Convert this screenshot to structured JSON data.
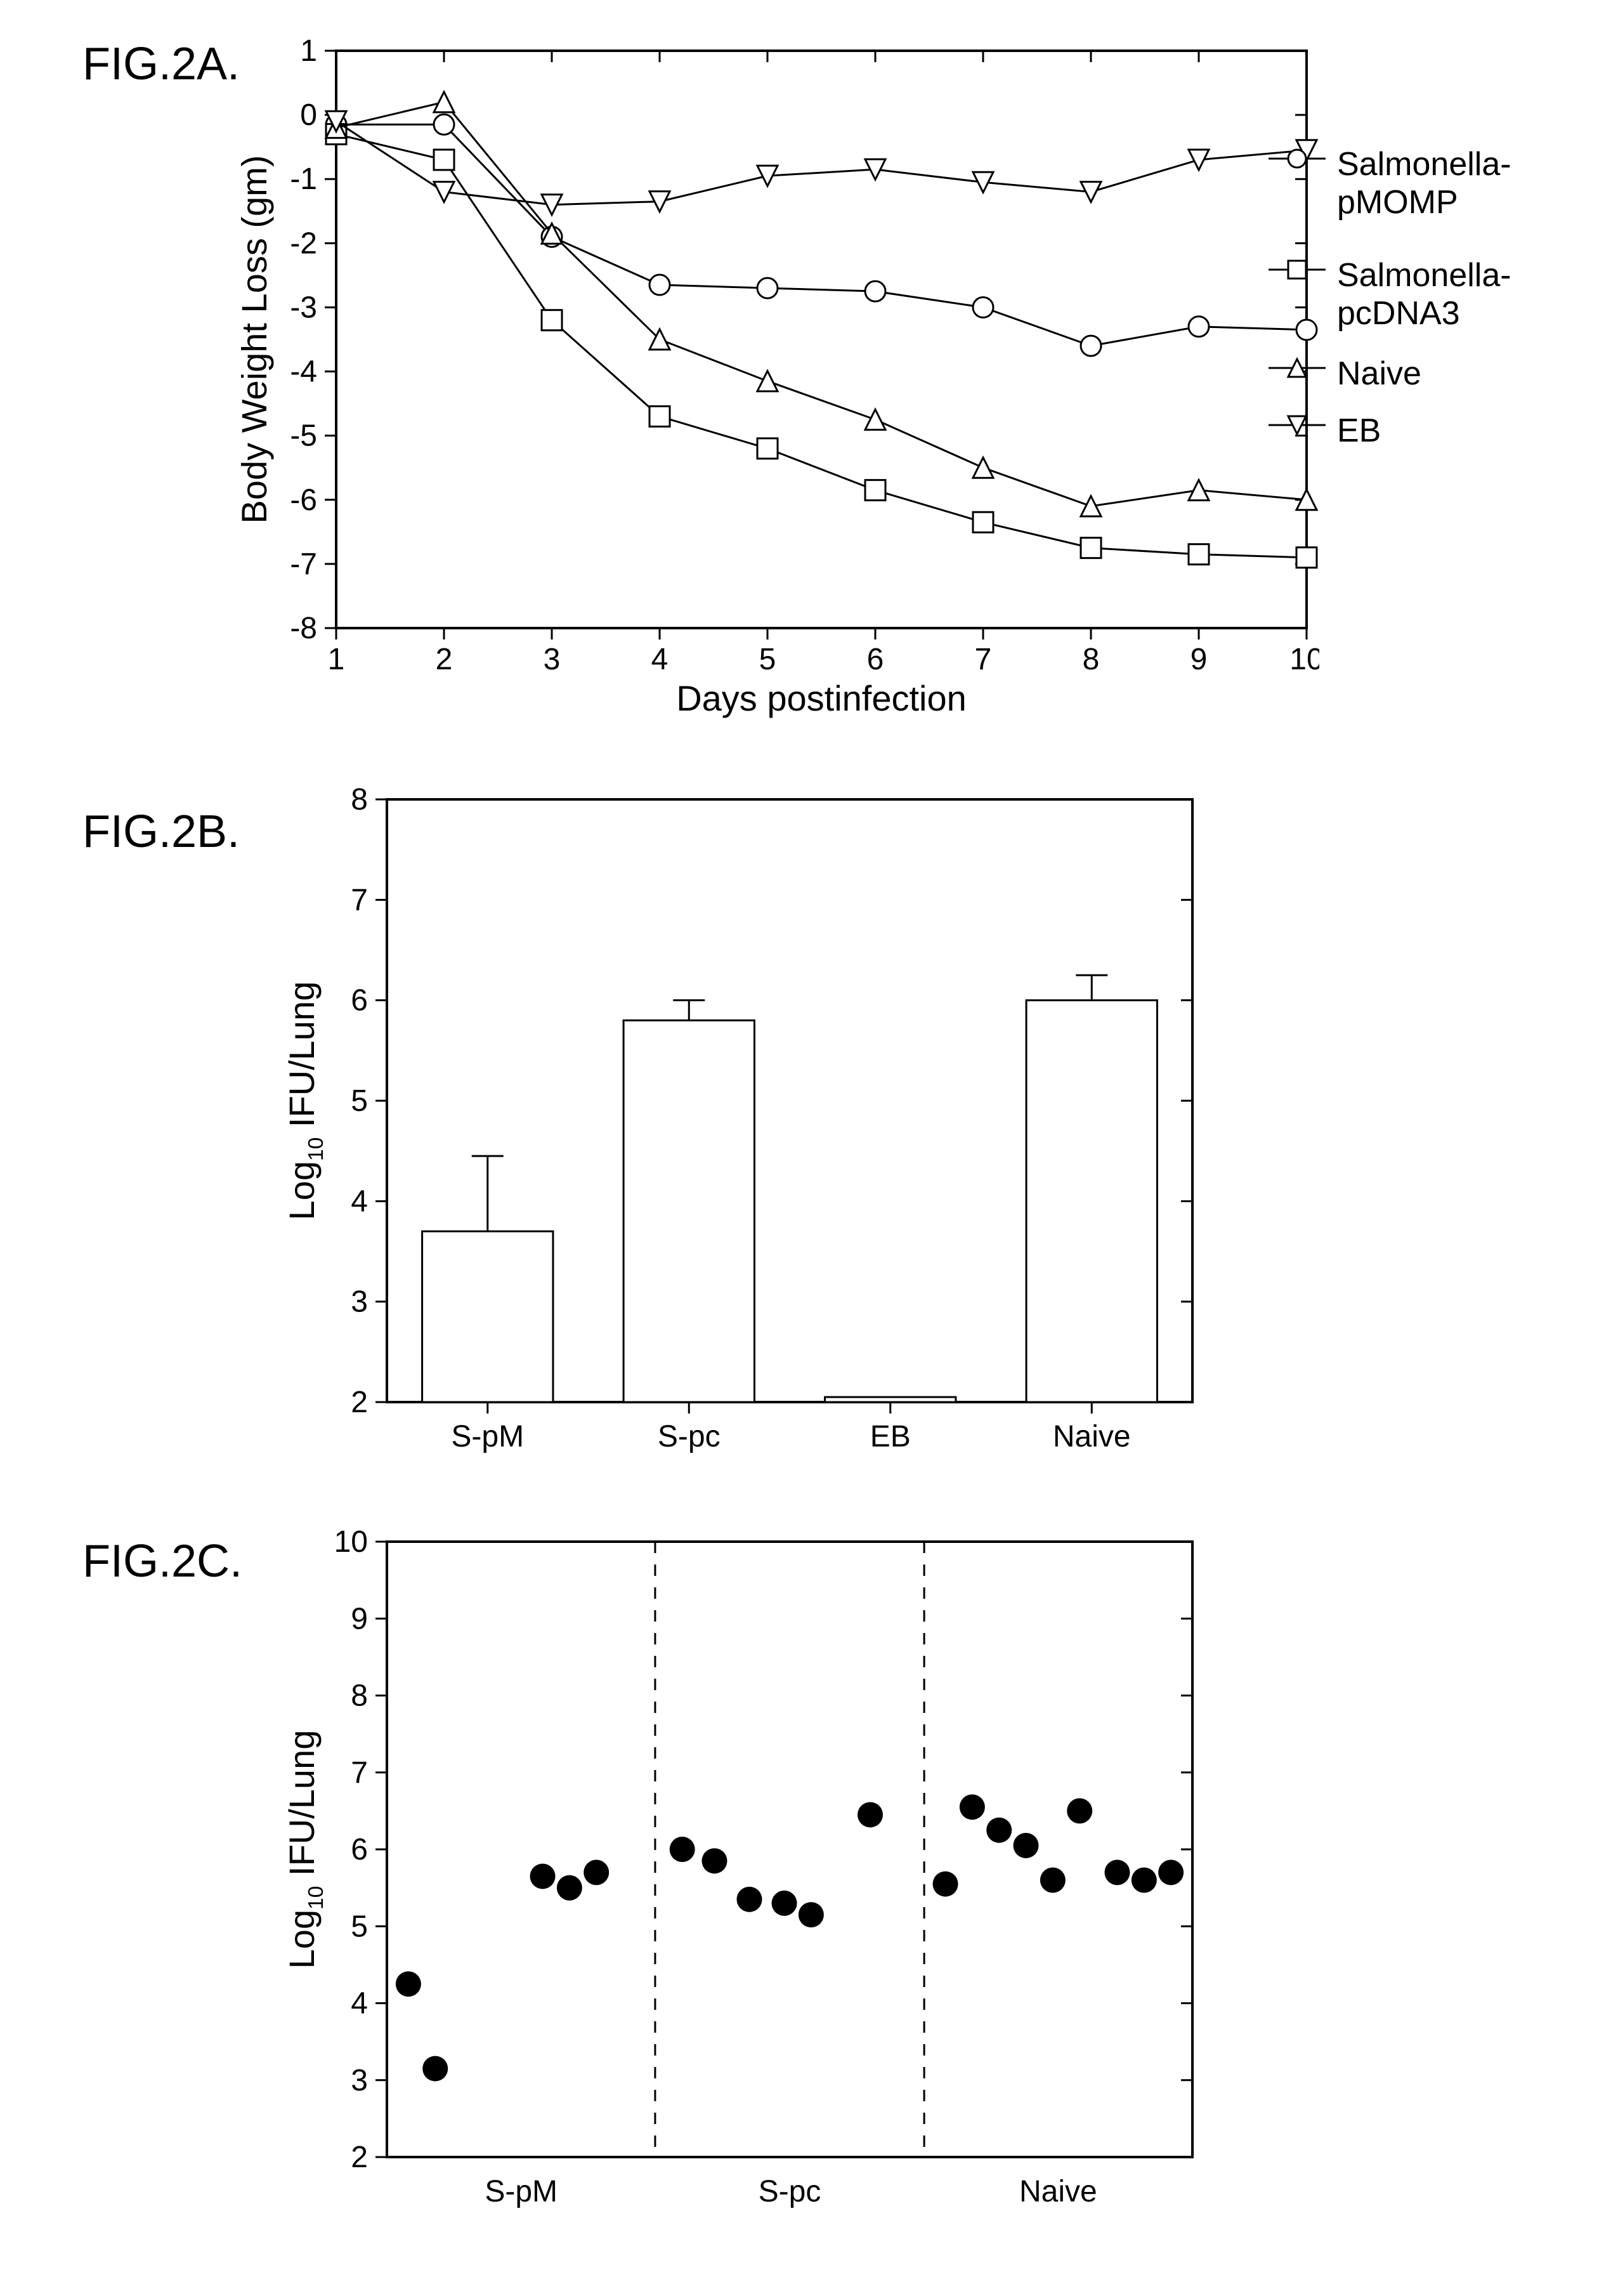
{
  "figA": {
    "label": "FIG.2A.",
    "type": "line",
    "xlabel": "Days postinfection",
    "ylabel": "Body Weight Loss (gm)",
    "xlim": [
      1,
      10
    ],
    "ylim": [
      -8,
      1
    ],
    "xtick_step": 1,
    "ytick_step": 1,
    "label_fontsize": 56,
    "tick_fontsize": 48,
    "line_color": "#000000",
    "line_width": 3,
    "background": "#ffffff",
    "marker_size": 16,
    "series": [
      {
        "name": "Salmonella-pMOMP",
        "marker": "circle",
        "x": [
          1,
          2,
          3,
          4,
          5,
          6,
          7,
          8,
          9,
          10
        ],
        "y": [
          -0.15,
          -0.15,
          -1.9,
          -2.65,
          -2.7,
          -2.75,
          -3.0,
          -3.6,
          -3.3,
          -3.35
        ]
      },
      {
        "name": "Salmonella-pcDNA3",
        "marker": "square",
        "x": [
          1,
          2,
          3,
          4,
          5,
          6,
          7,
          8,
          9,
          10
        ],
        "y": [
          -0.3,
          -0.7,
          -3.2,
          -4.7,
          -5.2,
          -5.85,
          -6.35,
          -6.75,
          -6.85,
          -6.9
        ]
      },
      {
        "name": "Naive",
        "marker": "triangle",
        "x": [
          1,
          2,
          3,
          4,
          5,
          6,
          7,
          8,
          9,
          10
        ],
        "y": [
          -0.2,
          0.2,
          -1.85,
          -3.5,
          -4.15,
          -4.75,
          -5.5,
          -6.1,
          -5.85,
          -6.0
        ]
      },
      {
        "name": "EB",
        "marker": "triangle-down",
        "x": [
          1,
          2,
          3,
          4,
          5,
          6,
          7,
          8,
          9,
          10
        ],
        "y": [
          -0.1,
          -1.2,
          -1.4,
          -1.35,
          -0.95,
          -0.85,
          -1.05,
          -1.2,
          -0.7,
          -0.55
        ]
      }
    ],
    "legend_items": [
      {
        "label": "Salmonella-\npMOMP",
        "marker": "circle"
      },
      {
        "label": "Salmonella-\npcDNA3",
        "marker": "square"
      },
      {
        "label": "Naive",
        "marker": "triangle"
      },
      {
        "label": "EB",
        "marker": "triangle-down"
      }
    ]
  },
  "figB": {
    "label": "FIG.2B.",
    "type": "bar",
    "ylabel": "Log10 IFU/Lung",
    "ylim": [
      2,
      8
    ],
    "ytick_step": 1,
    "label_fontsize": 56,
    "tick_fontsize": 48,
    "bar_color": "#ffffff",
    "bar_border": "#000000",
    "bar_border_width": 3,
    "background": "#ffffff",
    "categories": [
      "S-pM",
      "S-pc",
      "EB",
      "Naive"
    ],
    "values": [
      3.7,
      5.8,
      2.05,
      6.0
    ],
    "errors": [
      0.75,
      0.2,
      0.0,
      0.25
    ],
    "bar_width": 0.65
  },
  "figC": {
    "label": "FIG.2C.",
    "type": "scatter",
    "ylabel": "Log10 IFU/Lung",
    "ylim": [
      2,
      10
    ],
    "ytick_step": 1,
    "label_fontsize": 56,
    "tick_fontsize": 48,
    "marker_color": "#000000",
    "marker_size": 20,
    "background": "#ffffff",
    "groups": [
      "S-pM",
      "S-pc",
      "Naive"
    ],
    "dividers": [
      0.333,
      0.667
    ],
    "points": [
      {
        "group": 0,
        "gx": 0.08,
        "y": 4.25
      },
      {
        "group": 0,
        "gx": 0.18,
        "y": 3.15
      },
      {
        "group": 0,
        "gx": 0.58,
        "y": 5.65
      },
      {
        "group": 0,
        "gx": 0.68,
        "y": 5.5
      },
      {
        "group": 0,
        "gx": 0.78,
        "y": 5.7
      },
      {
        "group": 1,
        "gx": 0.1,
        "y": 6.0
      },
      {
        "group": 1,
        "gx": 0.22,
        "y": 5.85
      },
      {
        "group": 1,
        "gx": 0.35,
        "y": 5.35
      },
      {
        "group": 1,
        "gx": 0.48,
        "y": 5.3
      },
      {
        "group": 1,
        "gx": 0.58,
        "y": 5.15
      },
      {
        "group": 1,
        "gx": 0.8,
        "y": 6.45
      },
      {
        "group": 2,
        "gx": 0.08,
        "y": 5.55
      },
      {
        "group": 2,
        "gx": 0.18,
        "y": 6.55
      },
      {
        "group": 2,
        "gx": 0.28,
        "y": 6.25
      },
      {
        "group": 2,
        "gx": 0.38,
        "y": 6.05
      },
      {
        "group": 2,
        "gx": 0.48,
        "y": 5.6
      },
      {
        "group": 2,
        "gx": 0.58,
        "y": 6.5
      },
      {
        "group": 2,
        "gx": 0.72,
        "y": 5.7
      },
      {
        "group": 2,
        "gx": 0.82,
        "y": 5.6
      },
      {
        "group": 2,
        "gx": 0.92,
        "y": 5.7
      }
    ]
  }
}
